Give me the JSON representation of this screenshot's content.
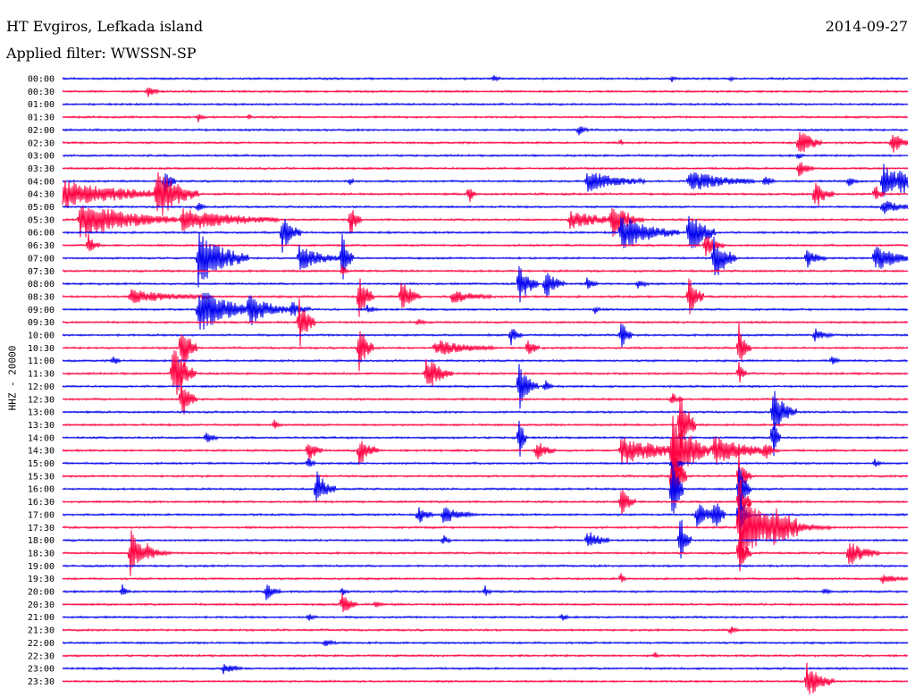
{
  "header": {
    "station": "HT Evgiros, Lefkada island",
    "filter": "Applied filter: WWSSN-SP",
    "date": "2014-09-27",
    "channel": "HHZ - 20000"
  },
  "colors": {
    "blue": "#0000ee",
    "red": "#ff0040",
    "background": "#ffffff",
    "text": "#000000"
  },
  "chart_data": {
    "type": "helicorder",
    "title": "HT Evgiros, Lefkada island",
    "subtitle": "Applied filter: WWSSN-SP",
    "ylabel": "HHZ - 20000",
    "grid": false,
    "line_colors_alternate": [
      "#0000ee",
      "#ff0040"
    ],
    "rows": [
      {
        "label": "00:00",
        "events": [
          [
            0.51,
            3,
            0.4
          ],
          [
            0.72,
            3,
            0.35
          ],
          [
            0.79,
            2,
            0.3
          ]
        ]
      },
      {
        "label": "00:30",
        "events": [
          [
            0.1,
            6,
            0.5
          ]
        ]
      },
      {
        "label": "01:00",
        "events": []
      },
      {
        "label": "01:30",
        "events": [
          [
            0.16,
            4,
            0.4
          ],
          [
            0.22,
            2,
            0.3
          ]
        ]
      },
      {
        "label": "02:00",
        "events": [
          [
            0.61,
            5,
            0.5
          ]
        ]
      },
      {
        "label": "02:30",
        "events": [
          [
            0.66,
            2,
            0.3
          ],
          [
            0.87,
            12,
            1.4
          ],
          [
            0.98,
            10,
            1.1
          ]
        ]
      },
      {
        "label": "03:00",
        "events": [
          [
            0.87,
            3,
            0.4
          ]
        ]
      },
      {
        "label": "03:30",
        "events": [
          [
            0.87,
            8,
            0.8
          ]
        ]
      },
      {
        "label": "04:00",
        "events": [
          [
            0.12,
            6,
            1.5
          ],
          [
            0.34,
            2,
            0.5
          ],
          [
            0.62,
            30,
            0.9
          ],
          [
            0.74,
            34,
            0.9
          ],
          [
            0.83,
            6,
            0.6
          ],
          [
            0.93,
            5,
            0.5
          ],
          [
            0.97,
            20,
            1.5
          ],
          [
            0.99,
            6,
            1.2
          ]
        ]
      },
      {
        "label": "04:30",
        "events": [
          [
            0.0,
            60,
            1.2
          ],
          [
            0.11,
            22,
            2.2
          ],
          [
            0.48,
            4,
            1.0
          ],
          [
            0.89,
            10,
            1.3
          ],
          [
            0.96,
            5,
            1.0
          ]
        ]
      },
      {
        "label": "05:00",
        "events": [
          [
            0.16,
            4,
            0.5
          ],
          [
            0.97,
            16,
            0.6
          ]
        ]
      },
      {
        "label": "05:30",
        "events": [
          [
            0.02,
            50,
            1.6
          ],
          [
            0.14,
            50,
            1.0
          ],
          [
            0.34,
            6,
            1.5
          ],
          [
            0.6,
            30,
            0.8
          ],
          [
            0.65,
            16,
            1.3
          ]
        ]
      },
      {
        "label": "06:00",
        "events": [
          [
            0.26,
            10,
            1.6
          ],
          [
            0.66,
            30,
            1.5
          ],
          [
            0.74,
            14,
            2.2
          ]
        ]
      },
      {
        "label": "06:30",
        "events": [
          [
            0.03,
            6,
            1.1
          ],
          [
            0.76,
            10,
            1.0
          ]
        ]
      },
      {
        "label": "07:00",
        "events": [
          [
            0.16,
            26,
            2.4
          ],
          [
            0.28,
            22,
            1.0
          ],
          [
            0.33,
            6,
            2.3
          ],
          [
            0.77,
            12,
            2.1
          ],
          [
            0.88,
            10,
            0.8
          ],
          [
            0.96,
            20,
            1.2
          ]
        ]
      },
      {
        "label": "07:30",
        "events": [
          [
            0.33,
            4,
            0.5
          ]
        ]
      },
      {
        "label": "08:00",
        "events": [
          [
            0.54,
            10,
            2.0
          ],
          [
            0.57,
            10,
            1.4
          ],
          [
            0.62,
            6,
            0.5
          ],
          [
            0.68,
            6,
            0.5
          ]
        ]
      },
      {
        "label": "08:30",
        "events": [
          [
            0.08,
            40,
            0.6
          ],
          [
            0.35,
            8,
            2.3
          ],
          [
            0.4,
            10,
            1.6
          ],
          [
            0.46,
            20,
            0.6
          ],
          [
            0.74,
            8,
            2.1
          ]
        ]
      },
      {
        "label": "09:00",
        "events": [
          [
            0.16,
            30,
            2.0
          ],
          [
            0.22,
            24,
            1.2
          ],
          [
            0.27,
            10,
            0.6
          ],
          [
            0.36,
            6,
            0.4
          ],
          [
            0.63,
            3,
            0.4
          ]
        ]
      },
      {
        "label": "09:30",
        "events": [
          [
            0.28,
            8,
            2.2
          ],
          [
            0.42,
            4,
            0.4
          ]
        ]
      },
      {
        "label": "10:00",
        "events": [
          [
            0.53,
            6,
            0.9
          ],
          [
            0.66,
            6,
            1.5
          ],
          [
            0.89,
            10,
            0.5
          ]
        ]
      },
      {
        "label": "10:30",
        "events": [
          [
            0.14,
            8,
            2.5
          ],
          [
            0.35,
            8,
            2.2
          ],
          [
            0.44,
            30,
            0.7
          ],
          [
            0.55,
            6,
            1.0
          ],
          [
            0.8,
            6,
            2.0
          ]
        ]
      },
      {
        "label": "11:00",
        "events": [
          [
            0.06,
            4,
            0.4
          ],
          [
            0.91,
            4,
            0.4
          ]
        ]
      },
      {
        "label": "11:30",
        "events": [
          [
            0.13,
            12,
            2.6
          ],
          [
            0.43,
            14,
            1.5
          ],
          [
            0.8,
            4,
            1.0
          ]
        ]
      },
      {
        "label": "12:00",
        "events": [
          [
            0.54,
            10,
            2.2
          ],
          [
            0.57,
            4,
            0.8
          ]
        ]
      },
      {
        "label": "12:30",
        "events": [
          [
            0.14,
            8,
            2.0
          ],
          [
            0.72,
            6,
            0.6
          ]
        ]
      },
      {
        "label": "13:00",
        "events": [
          [
            0.84,
            12,
            2.1
          ]
        ]
      },
      {
        "label": "13:30",
        "events": [
          [
            0.25,
            4,
            0.4
          ],
          [
            0.73,
            8,
            3.8
          ]
        ]
      },
      {
        "label": "14:00",
        "events": [
          [
            0.17,
            6,
            0.6
          ],
          [
            0.54,
            4,
            2.0
          ],
          [
            0.84,
            4,
            2.2
          ]
        ]
      },
      {
        "label": "14:30",
        "events": [
          [
            0.29,
            8,
            1.0
          ],
          [
            0.35,
            10,
            1.5
          ],
          [
            0.56,
            10,
            0.9
          ],
          [
            0.66,
            40,
            1.2
          ],
          [
            0.72,
            20,
            3.0
          ],
          [
            0.77,
            30,
            1.4
          ],
          [
            0.83,
            8,
            0.6
          ]
        ]
      },
      {
        "label": "15:00",
        "events": [
          [
            0.29,
            4,
            0.6
          ],
          [
            0.72,
            6,
            1.0
          ],
          [
            0.96,
            4,
            0.4
          ]
        ]
      },
      {
        "label": "15:30",
        "events": [
          [
            0.72,
            8,
            4.0
          ],
          [
            0.8,
            6,
            2.0
          ]
        ]
      },
      {
        "label": "16:00",
        "events": [
          [
            0.3,
            10,
            1.6
          ],
          [
            0.72,
            6,
            4.0
          ],
          [
            0.8,
            6,
            2.5
          ]
        ]
      },
      {
        "label": "16:30",
        "events": [
          [
            0.66,
            8,
            1.4
          ],
          [
            0.8,
            6,
            2.5
          ]
        ]
      },
      {
        "label": "17:00",
        "events": [
          [
            0.42,
            8,
            0.9
          ],
          [
            0.45,
            16,
            0.8
          ],
          [
            0.75,
            14,
            1.0
          ],
          [
            0.77,
            6,
            1.4
          ],
          [
            0.8,
            6,
            2.5
          ]
        ]
      },
      {
        "label": "17:30",
        "events": [
          [
            0.8,
            30,
            3.2
          ],
          [
            0.84,
            30,
            0.8
          ]
        ]
      },
      {
        "label": "18:00",
        "events": [
          [
            0.45,
            4,
            0.5
          ],
          [
            0.62,
            12,
            0.9
          ],
          [
            0.73,
            6,
            2.5
          ]
        ]
      },
      {
        "label": "18:30",
        "events": [
          [
            0.08,
            10,
            2.0
          ],
          [
            0.1,
            12,
            0.6
          ],
          [
            0.93,
            16,
            1.1
          ],
          [
            0.8,
            6,
            2.0
          ]
        ]
      },
      {
        "label": "19:00",
        "events": []
      },
      {
        "label": "19:30",
        "events": [
          [
            0.66,
            3,
            0.5
          ],
          [
            0.97,
            14,
            0.4
          ]
        ]
      },
      {
        "label": "20:00",
        "events": [
          [
            0.07,
            4,
            0.6
          ],
          [
            0.24,
            8,
            0.8
          ],
          [
            0.33,
            4,
            0.4
          ],
          [
            0.5,
            4,
            0.4
          ],
          [
            0.9,
            4,
            0.4
          ]
        ]
      },
      {
        "label": "20:30",
        "events": [
          [
            0.33,
            8,
            1.1
          ],
          [
            0.37,
            4,
            0.4
          ]
        ]
      },
      {
        "label": "21:00",
        "events": [
          [
            0.29,
            4,
            0.4
          ],
          [
            0.59,
            4,
            0.4
          ]
        ]
      },
      {
        "label": "21:30",
        "events": [
          [
            0.79,
            4,
            0.4
          ]
        ]
      },
      {
        "label": "22:00",
        "events": [
          [
            0.31,
            6,
            0.5
          ]
        ]
      },
      {
        "label": "22:30",
        "events": [
          [
            0.7,
            3,
            0.3
          ]
        ]
      },
      {
        "label": "23:00",
        "events": [
          [
            0.19,
            10,
            0.5
          ]
        ]
      },
      {
        "label": "23:30",
        "events": [
          [
            0.88,
            14,
            1.6
          ]
        ]
      }
    ]
  }
}
